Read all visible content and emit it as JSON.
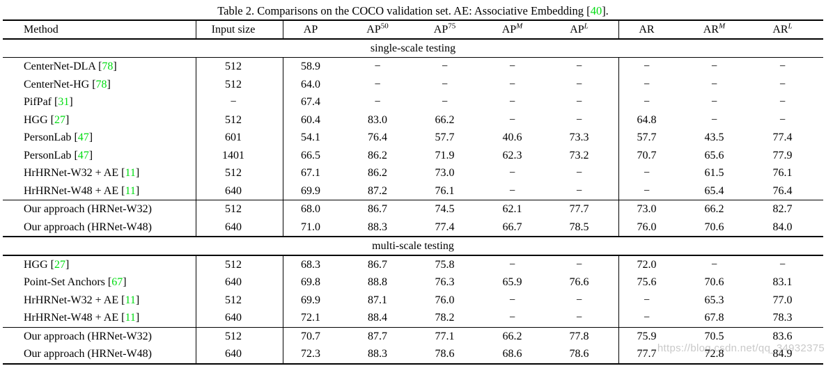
{
  "title": {
    "prefix": "Table 2. Comparisons on the COCO validation set. AE: Associative Embedding [",
    "cite": "40",
    "suffix": "]."
  },
  "colors": {
    "citation_green": "#00dc11",
    "watermark_gray": "#c9c9c9"
  },
  "watermark": {
    "text": "https://blog.csdn.net/qq_34932375"
  },
  "table": {
    "headers": [
      {
        "label": "Method"
      },
      {
        "label": "Input size"
      },
      {
        "base": "AP"
      },
      {
        "base": "AP",
        "sup": "50"
      },
      {
        "base": "AP",
        "sup": "75"
      },
      {
        "base": "AP",
        "sup": "M",
        "italic_sup": true
      },
      {
        "base": "AP",
        "sup": "L",
        "italic_sup": true
      },
      {
        "base": "AR"
      },
      {
        "base": "AR",
        "sup": "M",
        "italic_sup": true
      },
      {
        "base": "AR",
        "sup": "L",
        "italic_sup": true
      }
    ],
    "sections": [
      {
        "label": "single-scale testing",
        "groups": [
          {
            "rows": [
              {
                "method": "CenterNet-DLA",
                "cite": "78",
                "values": [
                  "512",
                  "58.9",
                  "−",
                  "−",
                  "−",
                  "−",
                  "−",
                  "−",
                  "−"
                ]
              },
              {
                "method": "CenterNet-HG",
                "cite": "78",
                "values": [
                  "512",
                  "64.0",
                  "−",
                  "−",
                  "−",
                  "−",
                  "−",
                  "−",
                  "−"
                ]
              },
              {
                "method": "PifPaf",
                "cite": "31",
                "values": [
                  "−",
                  "67.4",
                  "−",
                  "−",
                  "−",
                  "−",
                  "−",
                  "−",
                  "−"
                ]
              },
              {
                "method": "HGG",
                "cite": "27",
                "values": [
                  "512",
                  "60.4",
                  "83.0",
                  "66.2",
                  "−",
                  "−",
                  "64.8",
                  "−",
                  "−"
                ]
              },
              {
                "method": "PersonLab",
                "cite": "47",
                "values": [
                  "601",
                  "54.1",
                  "76.4",
                  "57.7",
                  "40.6",
                  "73.3",
                  "57.7",
                  "43.5",
                  "77.4"
                ]
              },
              {
                "method": "PersonLab",
                "cite": "47",
                "values": [
                  "1401",
                  "66.5",
                  "86.2",
                  "71.9",
                  "62.3",
                  "73.2",
                  "70.7",
                  "65.6",
                  "77.9"
                ]
              },
              {
                "method": "HrHRNet-W32 + AE",
                "cite": "11",
                "values": [
                  "512",
                  "67.1",
                  "86.2",
                  "73.0",
                  "−",
                  "−",
                  "−",
                  "61.5",
                  "76.1"
                ]
              },
              {
                "method": "HrHRNet-W48 + AE",
                "cite": "11",
                "values": [
                  "640",
                  "69.9",
                  "87.2",
                  "76.1",
                  "−",
                  "−",
                  "−",
                  "65.4",
                  "76.4"
                ]
              }
            ]
          },
          {
            "rows": [
              {
                "method": "Our approach (HRNet-W32)",
                "cite": null,
                "values": [
                  "512",
                  "68.0",
                  "86.7",
                  "74.5",
                  "62.1",
                  "77.7",
                  "73.0",
                  "66.2",
                  "82.7"
                ]
              },
              {
                "method": "Our approach (HRNet-W48)",
                "cite": null,
                "values": [
                  "640",
                  "71.0",
                  "88.3",
                  "77.4",
                  "66.7",
                  "78.5",
                  "76.0",
                  "70.6",
                  "84.0"
                ]
              }
            ]
          }
        ]
      },
      {
        "label": "multi-scale testing",
        "groups": [
          {
            "rows": [
              {
                "method": "HGG",
                "cite": "27",
                "values": [
                  "512",
                  "68.3",
                  "86.7",
                  "75.8",
                  "−",
                  "−",
                  "72.0",
                  "−",
                  "−"
                ]
              },
              {
                "method": "Point-Set Anchors",
                "cite": "67",
                "values": [
                  "640",
                  "69.8",
                  "88.8",
                  "76.3",
                  "65.9",
                  "76.6",
                  "75.6",
                  "70.6",
                  "83.1"
                ]
              },
              {
                "method": "HrHRNet-W32 + AE",
                "cite": "11",
                "values": [
                  "512",
                  "69.9",
                  "87.1",
                  "76.0",
                  "−",
                  "−",
                  "−",
                  "65.3",
                  "77.0"
                ]
              },
              {
                "method": "HrHRNet-W48 + AE",
                "cite": "11",
                "values": [
                  "640",
                  "72.1",
                  "88.4",
                  "78.2",
                  "−",
                  "−",
                  "−",
                  "67.8",
                  "78.3"
                ]
              }
            ]
          },
          {
            "rows": [
              {
                "method": "Our approach (HRNet-W32)",
                "cite": null,
                "values": [
                  "512",
                  "70.7",
                  "87.7",
                  "77.1",
                  "66.2",
                  "77.8",
                  "75.9",
                  "70.5",
                  "83.6"
                ]
              },
              {
                "method": "Our approach (HRNet-W48)",
                "cite": null,
                "values": [
                  "640",
                  "72.3",
                  "88.3",
                  "78.6",
                  "68.6",
                  "78.6",
                  "77.7",
                  "72.8",
                  "84.9"
                ]
              }
            ]
          }
        ]
      }
    ]
  }
}
